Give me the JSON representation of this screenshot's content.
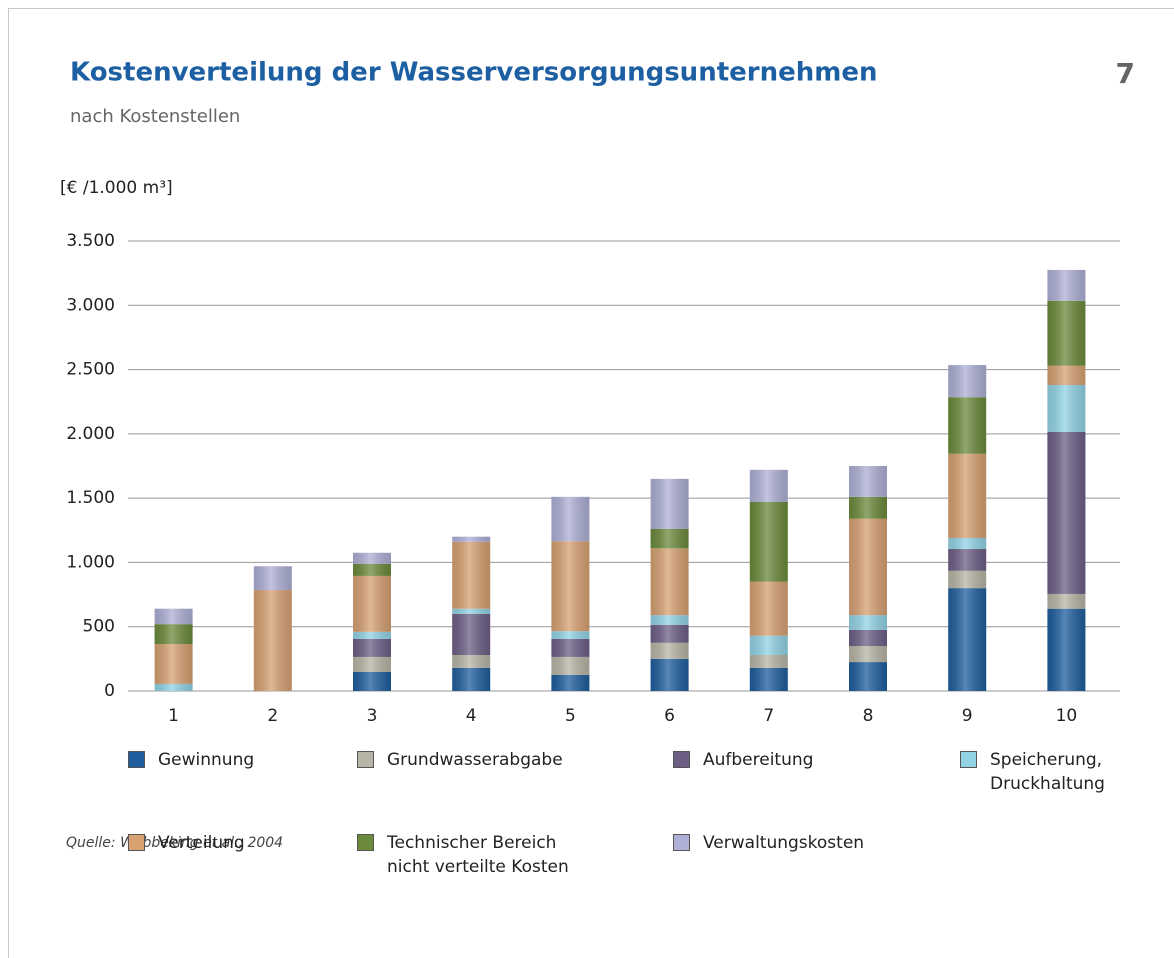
{
  "chart_data": {
    "type": "bar",
    "stacked": true,
    "page_number": "7",
    "title": "Kostenverteilung der Wasserversorgungsunternehmen",
    "subtitle": "nach Kostenstellen",
    "y_axis_label": "[€ /1.000 m³]",
    "source": "Quelle: Wöbbeking et al., 2004",
    "categories": [
      "1",
      "2",
      "3",
      "4",
      "5",
      "6",
      "7",
      "8",
      "9",
      "10"
    ],
    "series": [
      {
        "name": "Gewinnung",
        "color": "#1f5e9e",
        "values": [
          0,
          0,
          148,
          180,
          125,
          250,
          180,
          225,
          800,
          640
        ]
      },
      {
        "name": "Grundwasserabgabe",
        "color": "#b7b5a6",
        "values": [
          0,
          0,
          117,
          100,
          140,
          125,
          100,
          125,
          135,
          115
        ]
      },
      {
        "name": "Aufbereitung",
        "color": "#6d5e86",
        "values": [
          0,
          0,
          140,
          320,
          140,
          140,
          0,
          125,
          170,
          1260
        ]
      },
      {
        "name": "Speicherung,\nDruckhaltung",
        "color": "#92d3e6",
        "values": [
          55,
          0,
          55,
          40,
          60,
          75,
          150,
          115,
          85,
          365
        ]
      },
      {
        "name": "Verteilung",
        "color": "#d7a172",
        "values": [
          310,
          785,
          435,
          520,
          700,
          520,
          420,
          750,
          655,
          150
        ]
      },
      {
        "name": "Technischer Bereich\nnicht verteilte Kosten",
        "color": "#6b8a3b",
        "values": [
          155,
          0,
          95,
          0,
          0,
          150,
          620,
          170,
          440,
          505
        ]
      },
      {
        "name": "Verwaltungskosten",
        "color": "#aeb0d6",
        "values": [
          120,
          185,
          85,
          40,
          345,
          390,
          250,
          240,
          250,
          240
        ]
      }
    ],
    "ylim": [
      0,
      3500
    ],
    "yticks": [
      0,
      500,
      {
        "value": 1000,
        "label": "1.000"
      },
      {
        "value": 1500,
        "label": "1.500"
      },
      {
        "value": 2000,
        "label": "2.000"
      },
      {
        "value": 2500,
        "label": "2.500"
      },
      {
        "value": 3000,
        "label": "3.000"
      },
      {
        "value": 3500,
        "label": "3.500"
      }
    ],
    "grid": true
  }
}
